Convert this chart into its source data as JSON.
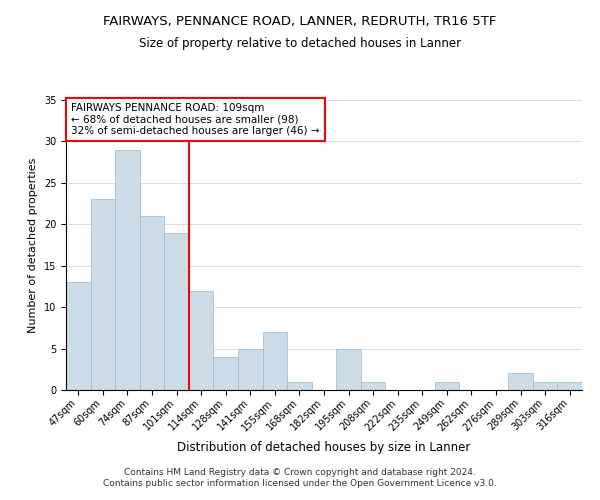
{
  "title": "FAIRWAYS, PENNANCE ROAD, LANNER, REDRUTH, TR16 5TF",
  "subtitle": "Size of property relative to detached houses in Lanner",
  "xlabel": "Distribution of detached houses by size in Lanner",
  "ylabel": "Number of detached properties",
  "footnote1": "Contains HM Land Registry data © Crown copyright and database right 2024.",
  "footnote2": "Contains public sector information licensed under the Open Government Licence v3.0.",
  "bar_labels": [
    "47sqm",
    "60sqm",
    "74sqm",
    "87sqm",
    "101sqm",
    "114sqm",
    "128sqm",
    "141sqm",
    "155sqm",
    "168sqm",
    "182sqm",
    "195sqm",
    "208sqm",
    "222sqm",
    "235sqm",
    "249sqm",
    "262sqm",
    "276sqm",
    "289sqm",
    "303sqm",
    "316sqm"
  ],
  "bar_values": [
    13,
    23,
    29,
    21,
    19,
    12,
    4,
    5,
    7,
    1,
    0,
    5,
    1,
    0,
    0,
    1,
    0,
    0,
    2,
    1,
    1
  ],
  "bar_color": "#ccdce8",
  "bar_edge_color": "#9ab8cc",
  "vline_index": 5,
  "vline_color": "red",
  "annotation_text": "FAIRWAYS PENNANCE ROAD: 109sqm\n← 68% of detached houses are smaller (98)\n32% of semi-detached houses are larger (46) →",
  "annotation_box_color": "white",
  "annotation_box_edge": "red",
  "ylim": [
    0,
    35
  ],
  "yticks": [
    0,
    5,
    10,
    15,
    20,
    25,
    30,
    35
  ],
  "background_color": "white",
  "title_fontsize": 9.5,
  "subtitle_fontsize": 8.5,
  "xlabel_fontsize": 8.5,
  "ylabel_fontsize": 8,
  "tick_fontsize": 7,
  "annotation_fontsize": 7.5,
  "footnote_fontsize": 6.5
}
